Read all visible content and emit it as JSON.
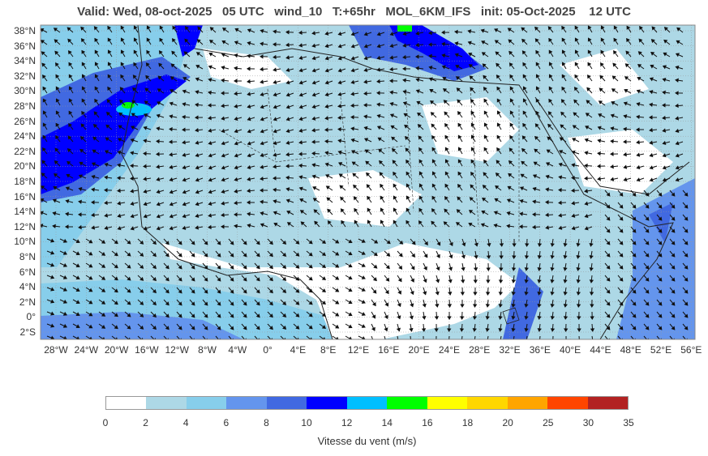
{
  "header": {
    "title": "Valid: Wed, 08-oct-2025   05 UTC   wind_10   T:+65hr   MOL_6KM_IFS   init: 05-Oct-2025    12 UTC"
  },
  "map": {
    "lat_labels": [
      "38°N",
      "36°N",
      "34°N",
      "32°N",
      "30°N",
      "28°N",
      "26°N",
      "24°N",
      "22°N",
      "20°N",
      "18°N",
      "16°N",
      "14°N",
      "12°N",
      "10°N",
      "8°N",
      "6°N",
      "4°N",
      "2°N",
      "0°",
      "2°S"
    ],
    "lon_labels": [
      "28°W",
      "24°W",
      "20°W",
      "16°W",
      "12°W",
      "8°W",
      "4°W",
      "0°",
      "4°E",
      "8°E",
      "12°E",
      "16°E",
      "20°E",
      "24°E",
      "28°E",
      "32°E",
      "36°E",
      "40°E",
      "44°E",
      "48°E",
      "52°E",
      "56°E"
    ]
  },
  "colorbar": {
    "label": "Vitesse du vent (m/s)",
    "ticks": [
      "0",
      "2",
      "4",
      "6",
      "8",
      "10",
      "12",
      "14",
      "16",
      "18",
      "20",
      "25",
      "30",
      "35"
    ],
    "colors": [
      "#ffffff",
      "#add8e6",
      "#87ceeb",
      "#6495ed",
      "#4169e1",
      "#0000ff",
      "#00bfff",
      "#00ff00",
      "#ffff00",
      "#ffd700",
      "#ffa500",
      "#ff4500",
      "#b22222"
    ]
  }
}
